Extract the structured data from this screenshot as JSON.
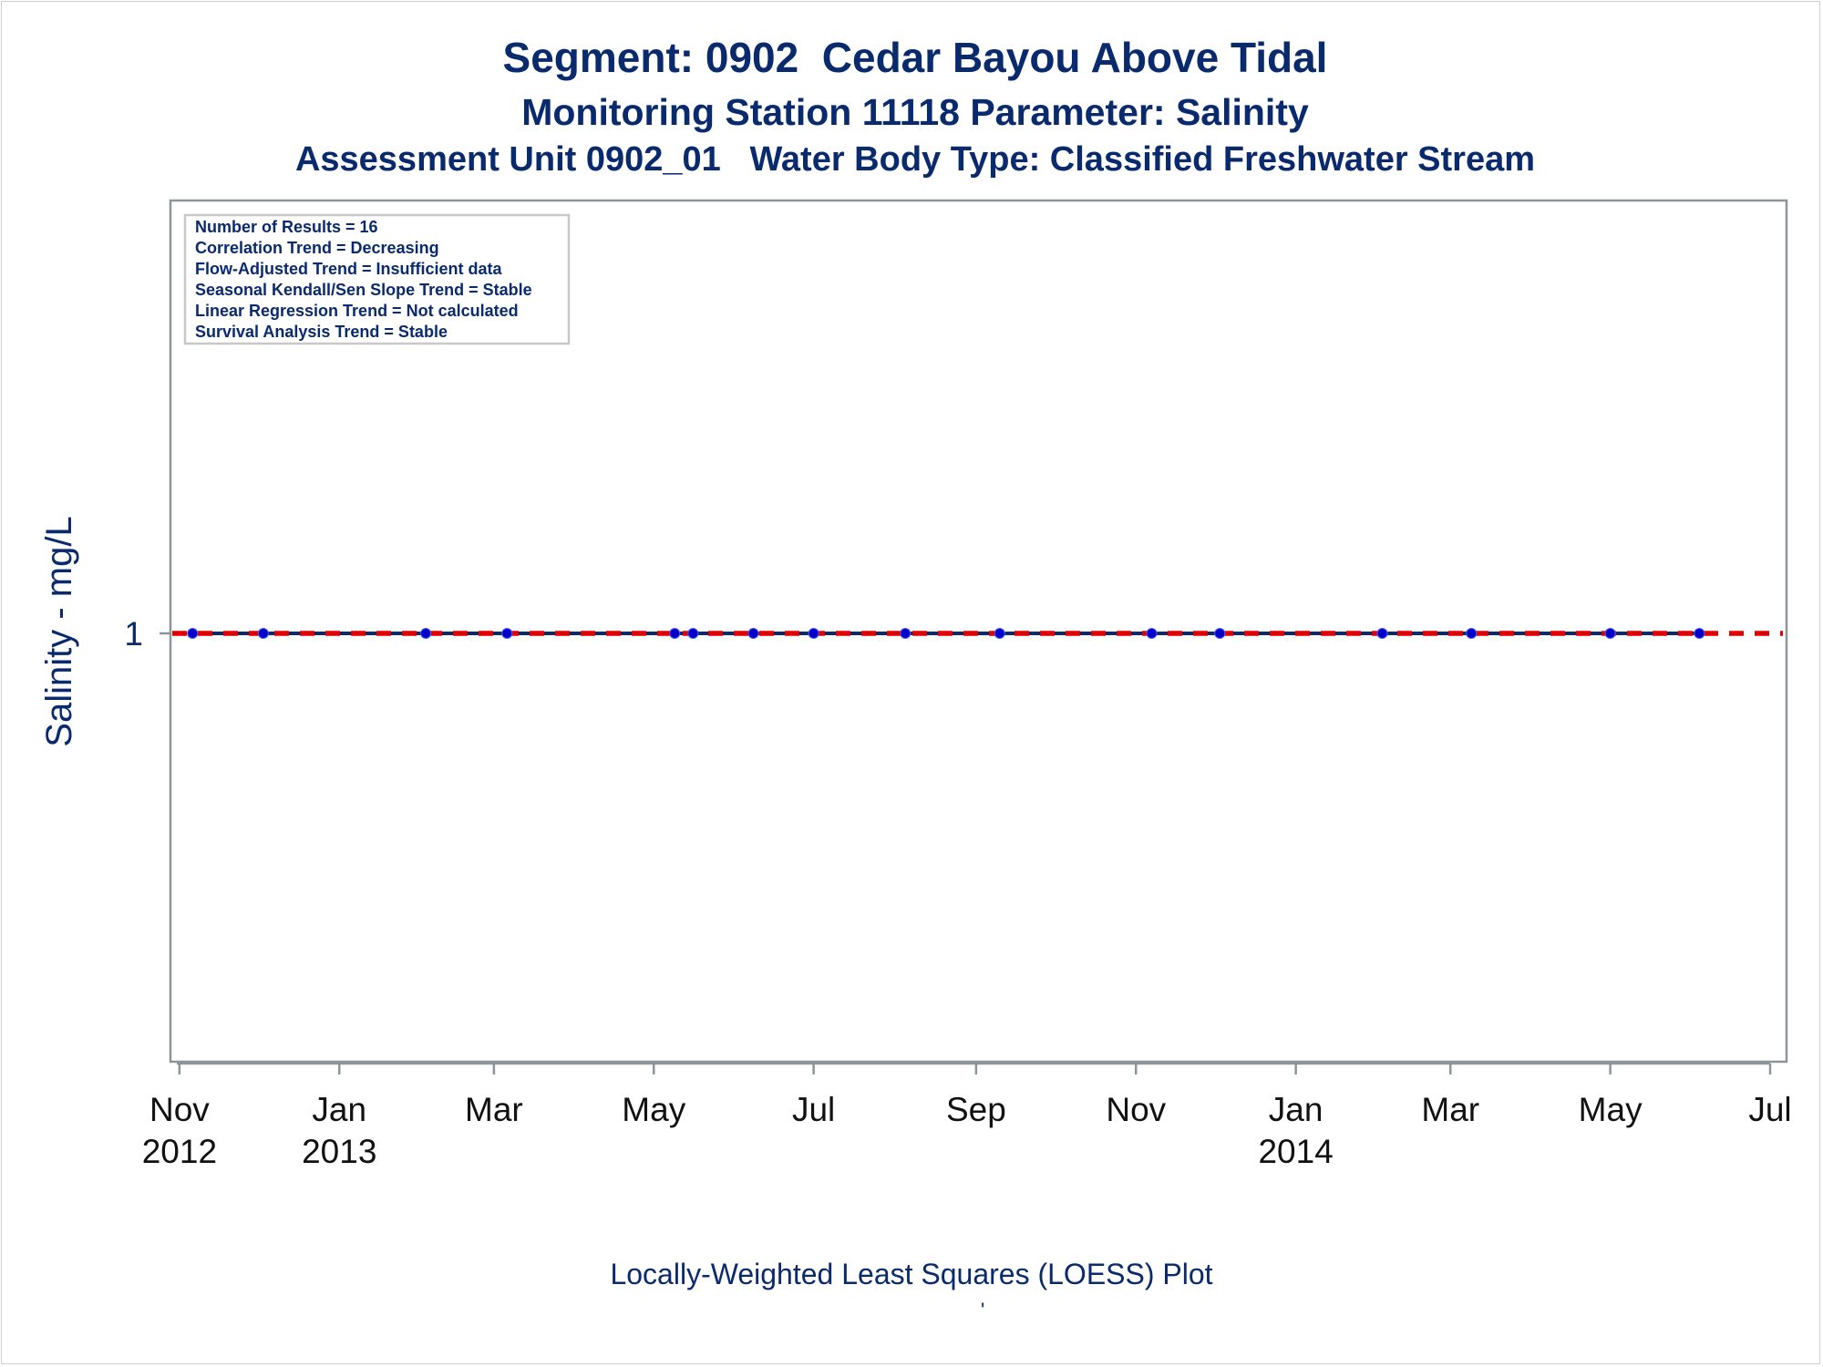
{
  "titles": {
    "line1": "Segment: 0902  Cedar Bayou Above Tidal",
    "line2": "Monitoring Station 11118 Parameter: Salinity",
    "line3": "Assessment Unit 0902_01   Water Body Type: Classified Freshwater Stream"
  },
  "footnote": "Locally-Weighted Least Squares (LOESS) Plot",
  "footnote_mark": "'",
  "colors": {
    "title": "#0a2a6e",
    "data_line": "#0a2a6e",
    "data_points": "#0000c8",
    "trend_line": "#e00000",
    "axis": "#8c9599"
  },
  "chart_data": {
    "type": "line",
    "ylabel": "Salinity - mg/L",
    "xlabel": "",
    "y_ticks": [
      1
    ],
    "x_range": [
      "2012-10-31",
      "2014-07-01"
    ],
    "x_ticks": [
      {
        "date": "2012-11-01",
        "line1": "Nov",
        "line2": "2012"
      },
      {
        "date": "2013-01-01",
        "line1": "Jan",
        "line2": "2013"
      },
      {
        "date": "2013-03-01",
        "line1": "Mar",
        "line2": ""
      },
      {
        "date": "2013-05-01",
        "line1": "May",
        "line2": ""
      },
      {
        "date": "2013-07-01",
        "line1": "Jul",
        "line2": ""
      },
      {
        "date": "2013-09-01",
        "line1": "Sep",
        "line2": ""
      },
      {
        "date": "2013-11-01",
        "line1": "Nov",
        "line2": ""
      },
      {
        "date": "2014-01-01",
        "line1": "Jan",
        "line2": "2014"
      },
      {
        "date": "2014-03-01",
        "line1": "Mar",
        "line2": ""
      },
      {
        "date": "2014-05-01",
        "line1": "May",
        "line2": ""
      },
      {
        "date": "2014-07-01",
        "line1": "Jul",
        "line2": ""
      }
    ],
    "series": [
      {
        "points": [
          {
            "x": "2012-11-06",
            "y": 1
          },
          {
            "x": "2012-12-03",
            "y": 1
          },
          {
            "x": "2013-02-03",
            "y": 1
          },
          {
            "x": "2013-03-06",
            "y": 1
          },
          {
            "x": "2013-05-09",
            "y": 1
          },
          {
            "x": "2013-05-16",
            "y": 1
          },
          {
            "x": "2013-06-08",
            "y": 1
          },
          {
            "x": "2013-07-01",
            "y": 1
          },
          {
            "x": "2013-08-05",
            "y": 1
          },
          {
            "x": "2013-09-10",
            "y": 1
          },
          {
            "x": "2013-11-07",
            "y": 1
          },
          {
            "x": "2013-12-03",
            "y": 1
          },
          {
            "x": "2014-02-03",
            "y": 1
          },
          {
            "x": "2014-03-09",
            "y": 1
          },
          {
            "x": "2014-05-01",
            "y": 1
          },
          {
            "x": "2014-06-04",
            "y": 1
          }
        ]
      }
    ],
    "trend_line": {
      "y": 1,
      "style": "dashed"
    },
    "legend": {
      "placement": "top-left",
      "entries": [
        "Number of Results = 16",
        "Correlation Trend = Decreasing",
        "Flow-Adjusted Trend = Insufficient data",
        "Seasonal Kendall/Sen Slope Trend = Stable",
        "Linear Regression Trend = Not calculated",
        "Survival Analysis Trend = Stable"
      ]
    }
  }
}
